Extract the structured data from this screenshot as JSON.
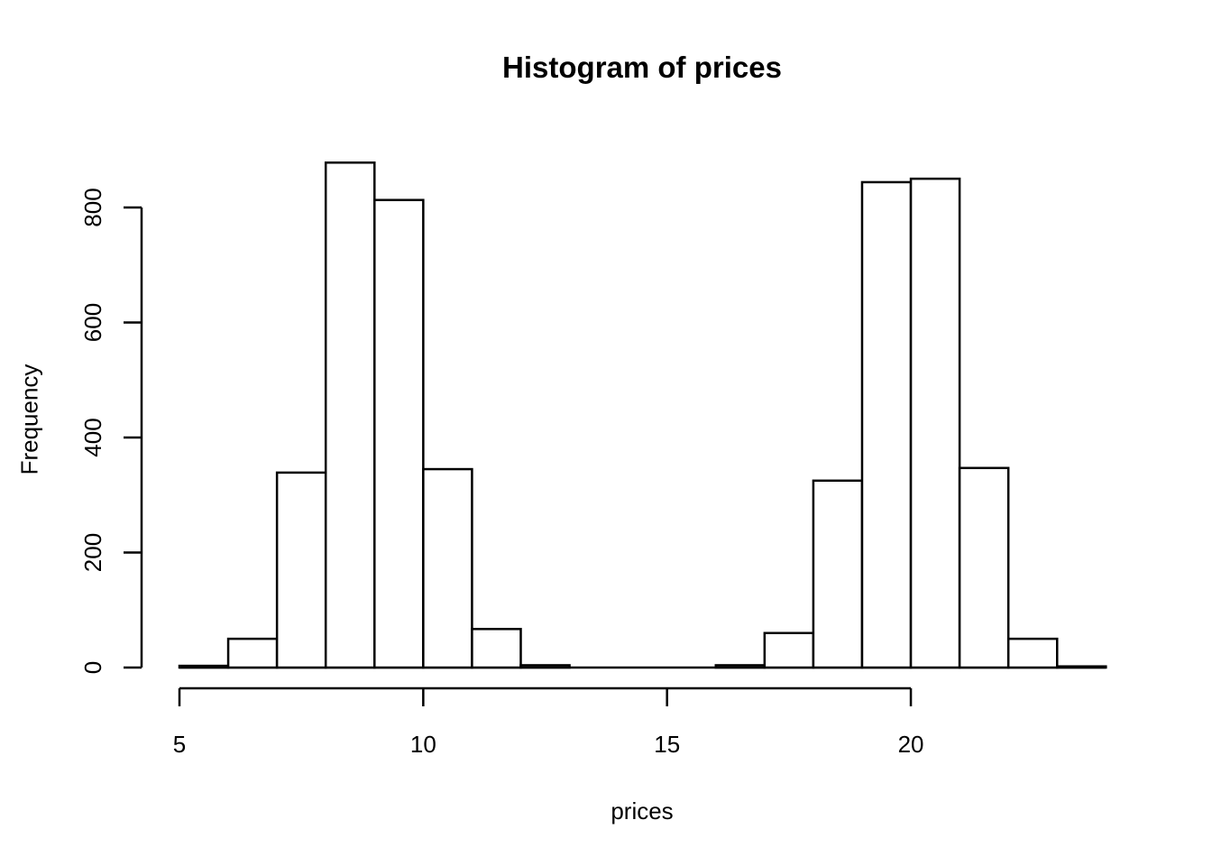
{
  "chart_data": {
    "type": "bar",
    "subtype": "histogram",
    "title": "Histogram of prices",
    "xlabel": "prices",
    "ylabel": "Frequency",
    "bins": {
      "start": 5,
      "width": 1,
      "end": 24
    },
    "bin_edges": [
      5,
      6,
      7,
      8,
      9,
      10,
      11,
      12,
      13,
      14,
      15,
      16,
      17,
      18,
      19,
      20,
      21,
      22,
      23,
      24
    ],
    "counts": [
      3,
      50,
      339,
      878,
      813,
      345,
      67,
      4,
      0,
      0,
      0,
      4,
      60,
      325,
      844,
      850,
      347,
      50,
      2
    ],
    "xticks": [
      5,
      10,
      15,
      20
    ],
    "yticks": [
      0,
      200,
      400,
      600,
      800
    ],
    "xlim": [
      5,
      24
    ],
    "ylim": [
      0,
      880
    ],
    "grid": false,
    "legend_position": "none",
    "colors": {
      "bar_fill": "#ffffff",
      "bar_border": "#000000",
      "axis": "#000000",
      "text": "#000000",
      "background": "#ffffff"
    }
  }
}
